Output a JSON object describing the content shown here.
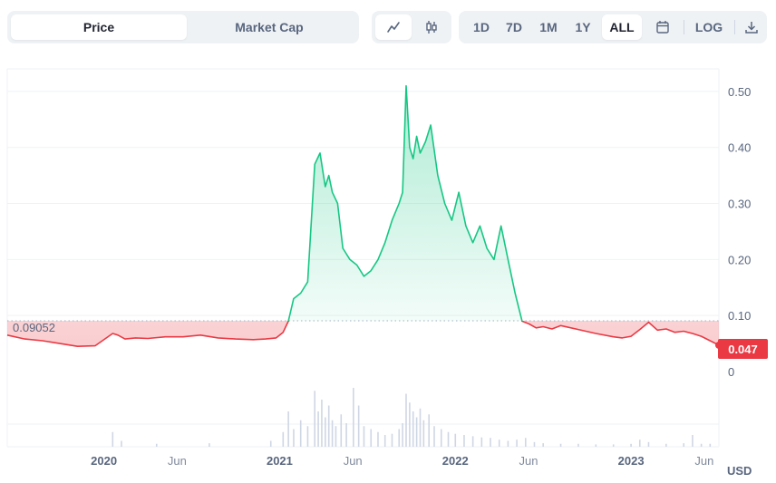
{
  "toolbar": {
    "type_tabs": [
      {
        "label": "Price",
        "active": true
      },
      {
        "label": "Market Cap",
        "active": false
      }
    ],
    "style_icons": [
      "line-chart-icon",
      "candlestick-icon"
    ],
    "ranges": [
      {
        "label": "1D"
      },
      {
        "label": "7D"
      },
      {
        "label": "1M"
      },
      {
        "label": "1Y"
      },
      {
        "label": "ALL",
        "active": true
      }
    ],
    "calendar_icon": "calendar-icon",
    "log_label": "LOG",
    "download_icon": "download-icon"
  },
  "colors": {
    "up": "#16c784",
    "down": "#ea3943",
    "grid": "#eff2f5",
    "axis_text": "#58667e",
    "volume": "#cfd6e4"
  },
  "chart_data": {
    "type": "line",
    "baseline": 0.09052,
    "baseline_label": "0.09052",
    "current_price": 0.047,
    "current_label": "0.047",
    "currency": "USD",
    "yticks": [
      0,
      0.1,
      0.2,
      0.3,
      0.4,
      0.5
    ],
    "ytick_labels": [
      "0",
      "0.10",
      "0.20",
      "0.30",
      "0.40",
      "0.50"
    ],
    "ylim": [
      0,
      0.55
    ],
    "xtick_labels": [
      "2020",
      "Jun",
      "2021",
      "Jun",
      "2022",
      "Jun",
      "2023",
      "Jun"
    ],
    "xtick_t": [
      0.0,
      0.4167,
      1.0,
      1.4167,
      2.0,
      2.4167,
      3.0,
      3.4167
    ],
    "xlim": [
      -0.55,
      3.5
    ],
    "series": [
      {
        "name": "Price",
        "t": [
          -0.55,
          -0.45,
          -0.35,
          -0.25,
          -0.15,
          -0.05,
          0.05,
          0.08,
          0.12,
          0.18,
          0.25,
          0.35,
          0.45,
          0.55,
          0.65,
          0.75,
          0.85,
          0.92,
          0.98,
          1.02,
          1.05,
          1.08,
          1.12,
          1.16,
          1.2,
          1.23,
          1.26,
          1.28,
          1.3,
          1.33,
          1.36,
          1.4,
          1.44,
          1.48,
          1.52,
          1.56,
          1.6,
          1.64,
          1.68,
          1.7,
          1.72,
          1.74,
          1.76,
          1.78,
          1.8,
          1.83,
          1.86,
          1.9,
          1.94,
          1.98,
          2.02,
          2.06,
          2.1,
          2.14,
          2.18,
          2.22,
          2.26,
          2.3,
          2.34,
          2.38,
          2.42,
          2.46,
          2.5,
          2.55,
          2.6,
          2.7,
          2.8,
          2.9,
          2.95,
          3.0,
          3.05,
          3.1,
          3.15,
          3.2,
          3.25,
          3.3,
          3.35,
          3.4,
          3.45,
          3.5
        ],
        "price": [
          0.065,
          0.058,
          0.055,
          0.05,
          0.045,
          0.046,
          0.068,
          0.065,
          0.058,
          0.06,
          0.059,
          0.062,
          0.062,
          0.065,
          0.06,
          0.058,
          0.057,
          0.058,
          0.06,
          0.07,
          0.09,
          0.13,
          0.14,
          0.16,
          0.37,
          0.39,
          0.33,
          0.35,
          0.32,
          0.3,
          0.22,
          0.2,
          0.19,
          0.17,
          0.18,
          0.2,
          0.23,
          0.27,
          0.3,
          0.32,
          0.51,
          0.4,
          0.38,
          0.42,
          0.39,
          0.41,
          0.44,
          0.35,
          0.3,
          0.27,
          0.32,
          0.26,
          0.23,
          0.26,
          0.22,
          0.2,
          0.26,
          0.2,
          0.14,
          0.09,
          0.085,
          0.078,
          0.08,
          0.076,
          0.082,
          0.075,
          0.068,
          0.062,
          0.06,
          0.063,
          0.075,
          0.088,
          0.074,
          0.076,
          0.07,
          0.072,
          0.068,
          0.063,
          0.055,
          0.047
        ]
      }
    ],
    "volume_series": [
      {
        "t": 0.05,
        "v": 0.25
      },
      {
        "t": 0.1,
        "v": 0.1
      },
      {
        "t": 0.3,
        "v": 0.05
      },
      {
        "t": 0.6,
        "v": 0.06
      },
      {
        "t": 0.95,
        "v": 0.1
      },
      {
        "t": 1.02,
        "v": 0.25
      },
      {
        "t": 1.05,
        "v": 0.6
      },
      {
        "t": 1.08,
        "v": 0.3
      },
      {
        "t": 1.12,
        "v": 0.45
      },
      {
        "t": 1.16,
        "v": 0.35
      },
      {
        "t": 1.2,
        "v": 0.95
      },
      {
        "t": 1.22,
        "v": 0.6
      },
      {
        "t": 1.24,
        "v": 0.8
      },
      {
        "t": 1.26,
        "v": 0.5
      },
      {
        "t": 1.28,
        "v": 0.7
      },
      {
        "t": 1.3,
        "v": 0.45
      },
      {
        "t": 1.32,
        "v": 0.35
      },
      {
        "t": 1.35,
        "v": 0.55
      },
      {
        "t": 1.38,
        "v": 0.4
      },
      {
        "t": 1.42,
        "v": 1.0
      },
      {
        "t": 1.45,
        "v": 0.7
      },
      {
        "t": 1.48,
        "v": 0.35
      },
      {
        "t": 1.52,
        "v": 0.3
      },
      {
        "t": 1.56,
        "v": 0.25
      },
      {
        "t": 1.6,
        "v": 0.2
      },
      {
        "t": 1.64,
        "v": 0.22
      },
      {
        "t": 1.68,
        "v": 0.3
      },
      {
        "t": 1.7,
        "v": 0.4
      },
      {
        "t": 1.72,
        "v": 0.9
      },
      {
        "t": 1.74,
        "v": 0.75
      },
      {
        "t": 1.76,
        "v": 0.6
      },
      {
        "t": 1.78,
        "v": 0.5
      },
      {
        "t": 1.8,
        "v": 0.65
      },
      {
        "t": 1.82,
        "v": 0.45
      },
      {
        "t": 1.85,
        "v": 0.55
      },
      {
        "t": 1.88,
        "v": 0.35
      },
      {
        "t": 1.92,
        "v": 0.3
      },
      {
        "t": 1.96,
        "v": 0.25
      },
      {
        "t": 2.0,
        "v": 0.22
      },
      {
        "t": 2.05,
        "v": 0.2
      },
      {
        "t": 2.1,
        "v": 0.18
      },
      {
        "t": 2.15,
        "v": 0.16
      },
      {
        "t": 2.2,
        "v": 0.15
      },
      {
        "t": 2.25,
        "v": 0.12
      },
      {
        "t": 2.3,
        "v": 0.1
      },
      {
        "t": 2.35,
        "v": 0.12
      },
      {
        "t": 2.4,
        "v": 0.15
      },
      {
        "t": 2.45,
        "v": 0.08
      },
      {
        "t": 2.5,
        "v": 0.06
      },
      {
        "t": 2.6,
        "v": 0.05
      },
      {
        "t": 2.7,
        "v": 0.05
      },
      {
        "t": 2.8,
        "v": 0.04
      },
      {
        "t": 2.9,
        "v": 0.04
      },
      {
        "t": 3.0,
        "v": 0.05
      },
      {
        "t": 3.05,
        "v": 0.12
      },
      {
        "t": 3.1,
        "v": 0.08
      },
      {
        "t": 3.2,
        "v": 0.05
      },
      {
        "t": 3.3,
        "v": 0.06
      },
      {
        "t": 3.35,
        "v": 0.2
      },
      {
        "t": 3.4,
        "v": 0.05
      },
      {
        "t": 3.45,
        "v": 0.05
      }
    ]
  }
}
